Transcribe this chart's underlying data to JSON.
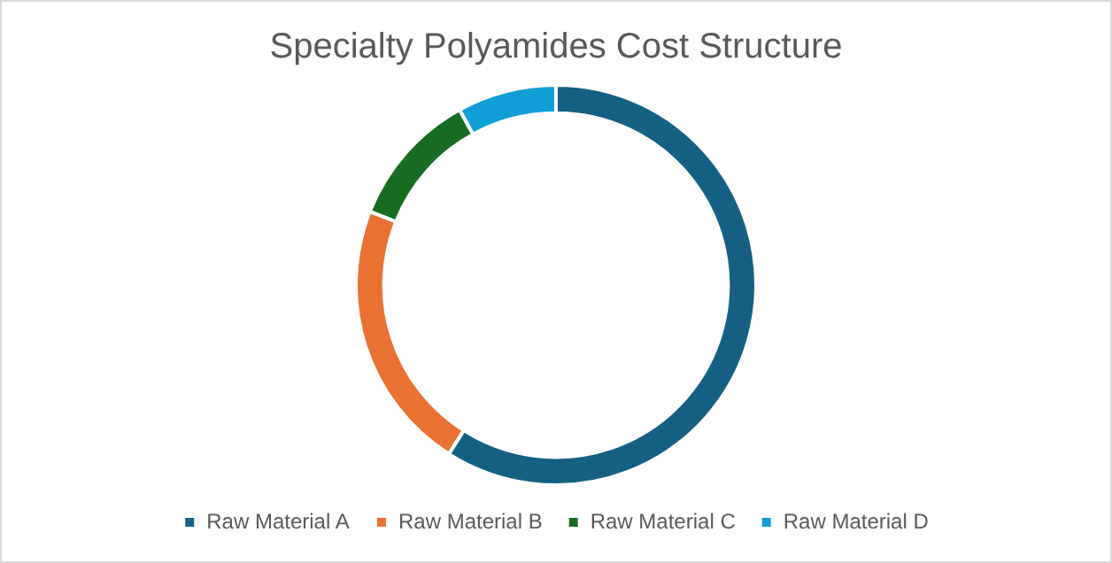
{
  "chart_data": {
    "type": "donut",
    "title": "Specialty Polyamides Cost Structure",
    "categories": [
      "Raw Material A",
      "Raw Material B",
      "Raw Material C",
      "Raw Material D"
    ],
    "values": [
      59,
      22,
      11,
      8
    ],
    "colors": [
      "#156082",
      "#e97132",
      "#196b24",
      "#0f9ed5"
    ],
    "legend": "bottom"
  }
}
